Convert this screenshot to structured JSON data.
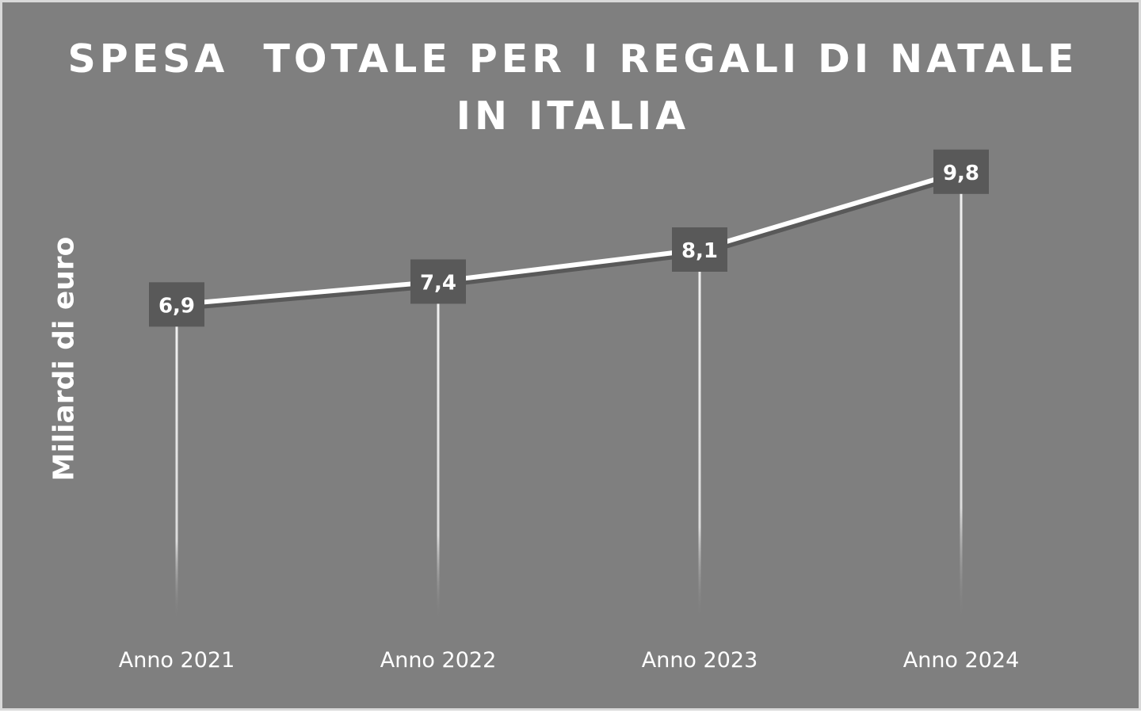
{
  "chart_data": {
    "type": "line",
    "title": "SPESA  TOTALE PER I REGALI DI NATALE\nIN ITALIA",
    "xlabel": "",
    "ylabel": "Miliardi di euro",
    "categories": [
      "Anno 2021",
      "Anno 2022",
      "Anno 2023",
      "Anno 2024"
    ],
    "values": [
      6.9,
      7.4,
      8.1,
      9.8
    ],
    "data_labels": [
      "6,9",
      "7,4",
      "8,1",
      "9,8"
    ],
    "ylim": [
      0,
      12.6
    ],
    "grid": false,
    "legend": "none",
    "drop_lines": true,
    "colors": {
      "background": "#7f7f7f",
      "line": "#ffffff",
      "line_shadow": "#595959",
      "label_box": "#595959",
      "text": "#ffffff"
    }
  }
}
